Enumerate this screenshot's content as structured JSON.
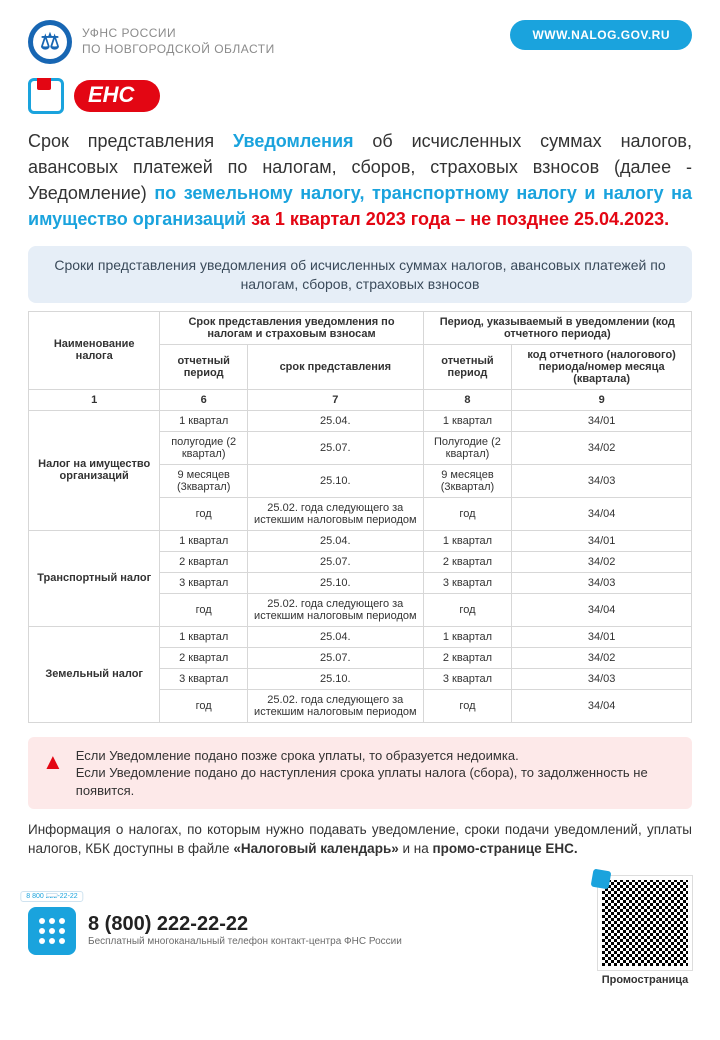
{
  "colors": {
    "blue": "#1aa3dd",
    "red": "#e30613",
    "bannerBg": "#e6eef7",
    "warnBg": "#fde9e9",
    "border": "#d7d7d7"
  },
  "header": {
    "org_line1": "УФНС РОССИИ",
    "org_line2": "ПО НОВГОРОДСКОЙ ОБЛАСТИ",
    "site": "WWW.NALOG.GOV.RU"
  },
  "badge": {
    "label": "ЕНС"
  },
  "headline": {
    "t1": "Срок представления ",
    "blue1": "Уведомления",
    "t2": " об исчисленных суммах налогов, авансовых платежей по налогам, сборов, страховых взносов (далее - Уведомление) ",
    "blue2": "по земельному налогу, транспортному налогу и налогу на имущество организаций",
    "red": " за 1 квартал 2023 года – не позднее 25.04.2023."
  },
  "sub_banner": "Сроки представления уведомления об исчисленных суммах налогов, авансовых платежей по налогам, сборов, страховых взносов",
  "table": {
    "header": {
      "name": "Наименование налога",
      "grp1": "Срок представления уведомления по налогам и страховым взносам",
      "grp1_c1": "отчетный период",
      "grp1_c2": "срок представления",
      "grp2": "Период, указываемый в уведомлении (код отчетного периода)",
      "grp2_c1": "отчетный период",
      "grp2_c2": "код отчетного (налогового) периода/номер месяца (квартала)",
      "nums": [
        "1",
        "6",
        "7",
        "8",
        "9"
      ]
    },
    "groups": [
      {
        "name": "Налог на имущество организаций",
        "rows": [
          [
            "1 квартал",
            "25.04.",
            "1 квартал",
            "34/01"
          ],
          [
            "полугодие (2 квартал)",
            "25.07.",
            "Полугодие (2 квартал)",
            "34/02"
          ],
          [
            "9 месяцев (3квартал)",
            "25.10.",
            "9 месяцев (3квартал)",
            "34/03"
          ],
          [
            "год",
            "25.02. года следующего за истекшим налоговым периодом",
            "год",
            "34/04"
          ]
        ]
      },
      {
        "name": "Транспортный налог",
        "rows": [
          [
            "1 квартал",
            "25.04.",
            "1 квартал",
            "34/01"
          ],
          [
            "2 квартал",
            "25.07.",
            "2 квартал",
            "34/02"
          ],
          [
            "3 квартал",
            "25.10.",
            "3 квартал",
            "34/03"
          ],
          [
            "год",
            "25.02. года следующего за истекшим налоговым периодом",
            "год",
            "34/04"
          ]
        ]
      },
      {
        "name": "Земельный налог",
        "rows": [
          [
            "1 квартал",
            "25.04.",
            "1 квартал",
            "34/01"
          ],
          [
            "2 квартал",
            "25.07.",
            "2 квартал",
            "34/02"
          ],
          [
            "3 квартал",
            "25.10.",
            "3 квартал",
            "34/03"
          ],
          [
            "год",
            "25.02. года следующего за истекшим налоговым периодом",
            "год",
            "34/04"
          ]
        ]
      }
    ]
  },
  "warning": {
    "l1": "Если Уведомление подано позже срока уплаты, то образуется недоимка.",
    "l2": "Если Уведомление подано до наступления срока уплаты налога (сбора), то задолженность не появится."
  },
  "info": {
    "t1": "Информация о налогах, по которым нужно подавать уведомление, сроки подачи уведомлений, уплаты налогов, КБК доступны в файле ",
    "b1": "«Налоговый календарь»",
    "t2": " и на ",
    "b2": "промо-странице ЕНС."
  },
  "footer": {
    "phone_tag": "8 800 222-22-22",
    "phone": "8 (800) 222-22-22",
    "phone_caption": "Бесплатный многоканальный телефон контакт-центра ФНС России",
    "qr_caption": "Промостраница"
  }
}
